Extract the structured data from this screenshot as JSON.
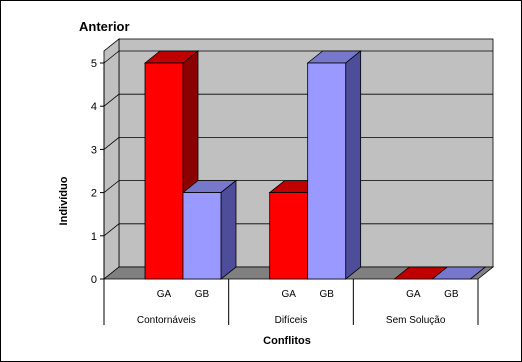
{
  "chart_data": {
    "type": "bar",
    "title": "Anterior",
    "xlabel": "Conflitos",
    "ylabel": "Indivíduo",
    "ylim": [
      0,
      5
    ],
    "yticks": [
      0,
      1,
      2,
      3,
      4,
      5
    ],
    "grid": true,
    "legend": "none",
    "three_d": true,
    "groups": [
      {
        "name": "Contornáveis",
        "categories": [
          "GA",
          "GB"
        ],
        "values": [
          5,
          2
        ]
      },
      {
        "name": "Difíceis",
        "categories": [
          "GA",
          "GB"
        ],
        "values": [
          2,
          5
        ]
      },
      {
        "name": "Sem Solução",
        "categories": [
          "GA",
          "GB"
        ],
        "values": [
          0,
          0
        ]
      }
    ],
    "series": [
      {
        "name": "GA",
        "values": [
          5,
          2,
          0
        ],
        "color": "#ff0000",
        "side_color": "#8b0000",
        "top_color": "#c00000"
      },
      {
        "name": "GB",
        "values": [
          2,
          5,
          0
        ],
        "color": "#9999ff",
        "side_color": "#4d4d99",
        "top_color": "#7777cc"
      }
    ],
    "colors": {
      "plot_background": "#c0c0c0",
      "floor": "#808080",
      "gridline": "#000000"
    }
  }
}
